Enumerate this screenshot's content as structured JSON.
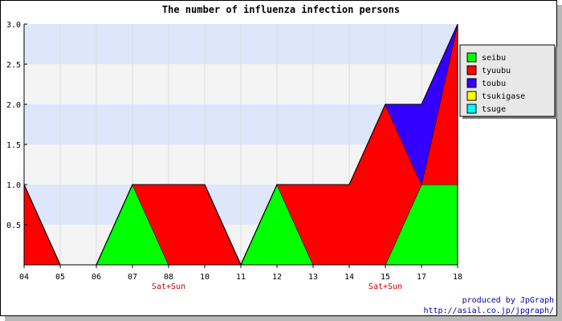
{
  "chart_data": {
    "type": "area",
    "title": "The number of influenza infection persons",
    "categories": [
      "04",
      "05",
      "06",
      "07",
      "08",
      "10",
      "11",
      "12",
      "13",
      "14",
      "15",
      "17",
      "18"
    ],
    "category_notes": [
      {
        "category": "08",
        "text": "Sat+Sun"
      },
      {
        "category": "15",
        "text": "Sat+Sun"
      }
    ],
    "ylim": [
      0,
      3.0
    ],
    "ytick_labels": [
      "0.5",
      "1.0",
      "1.5",
      "2.0",
      "2.5",
      "3.0"
    ],
    "stacked": true,
    "series": [
      {
        "name": "seibu",
        "color": "#00ff00",
        "values": [
          0,
          0,
          0,
          1,
          0,
          0,
          0,
          1,
          0,
          0,
          0,
          1,
          1
        ]
      },
      {
        "name": "tyuubu",
        "color": "#ff0000",
        "values": [
          1,
          0,
          0,
          0,
          1,
          1,
          0,
          0,
          1,
          1,
          2,
          0,
          2
        ]
      },
      {
        "name": "toubu",
        "color": "#3300ff",
        "values": [
          0,
          0,
          0,
          0,
          0,
          0,
          0,
          0,
          0,
          0,
          0,
          1,
          0
        ]
      },
      {
        "name": "tsukigase",
        "color": "#ffff00",
        "values": [
          0,
          0,
          0,
          0,
          0,
          0,
          0,
          0,
          0,
          0,
          0,
          0,
          0
        ]
      },
      {
        "name": "tsuge",
        "color": "#00ffff",
        "values": [
          0,
          0,
          0,
          0,
          0,
          0,
          0,
          0,
          0,
          0,
          0,
          0,
          0
        ]
      }
    ],
    "band_colors": [
      "#f4f4f4",
      "#dde6fb"
    ],
    "grid": "x",
    "legend_position": "right"
  },
  "credit": {
    "line1": "produced by JpGraph",
    "line2": "http://asial.co.jp/jpgraph/"
  }
}
